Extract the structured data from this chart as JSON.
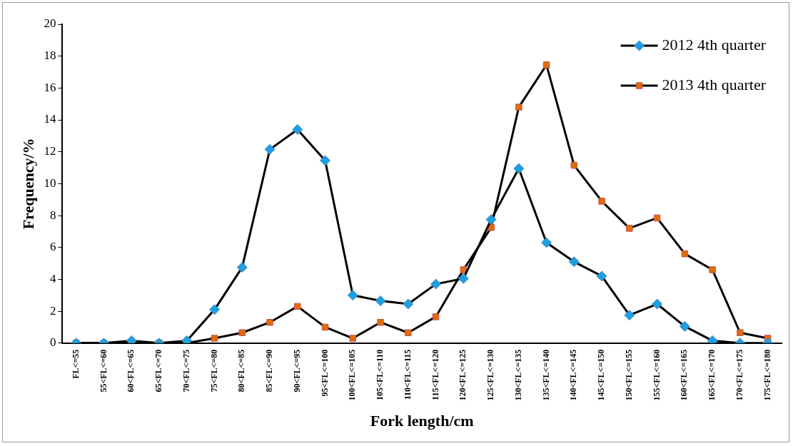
{
  "chart_data": {
    "type": "line",
    "xlabel": "Fork length/cm",
    "ylabel": "Frequency/%",
    "categories": [
      "FL<=55",
      "55<FL<=60",
      "60<FL<=65",
      "65<FL<=70",
      "70<FL<=75",
      "75<FL<=80",
      "80<FL<=85",
      "85<FL<=90",
      "90<FL<=95",
      "95<FL<=100",
      "100<FL<=105",
      "105<FL<=110",
      "110<FL<=115",
      "115<FL<=120",
      "120<FL<=125",
      "125<FL<=130",
      "130<FL<=135",
      "135<FL<=140",
      "140<FL<=145",
      "145<FL<=150",
      "150<FL<=155",
      "155<FL<=160",
      "160<FL<=165",
      "165<FL<=170",
      "170<FL<=175",
      "175<FL<=180"
    ],
    "series": [
      {
        "name": "2012 4th quarter",
        "color": "#1ba1e2",
        "marker": "diamond",
        "values": [
          0,
          0,
          0.15,
          0,
          0.15,
          2.1,
          4.75,
          12.15,
          13.4,
          11.45,
          3.0,
          2.65,
          2.45,
          3.7,
          4.05,
          7.75,
          10.95,
          6.3,
          5.1,
          4.2,
          1.75,
          2.45,
          1.05,
          0.15,
          0,
          0
        ]
      },
      {
        "name": "2013 4th quarter",
        "color": "#e36c0a",
        "marker": "square",
        "values": [
          0,
          0,
          0,
          0,
          0,
          0.3,
          0.65,
          1.3,
          2.3,
          1.0,
          0.3,
          1.3,
          0.65,
          1.65,
          4.6,
          7.25,
          14.8,
          17.45,
          11.15,
          8.9,
          7.2,
          7.85,
          5.6,
          4.6,
          0.65,
          0.3
        ]
      }
    ],
    "ylim": [
      0,
      20
    ],
    "yticks": [
      0,
      2,
      4,
      6,
      8,
      10,
      12,
      14,
      16,
      18,
      20
    ],
    "grid": false,
    "legend": "top right",
    "line_style": "solid"
  }
}
